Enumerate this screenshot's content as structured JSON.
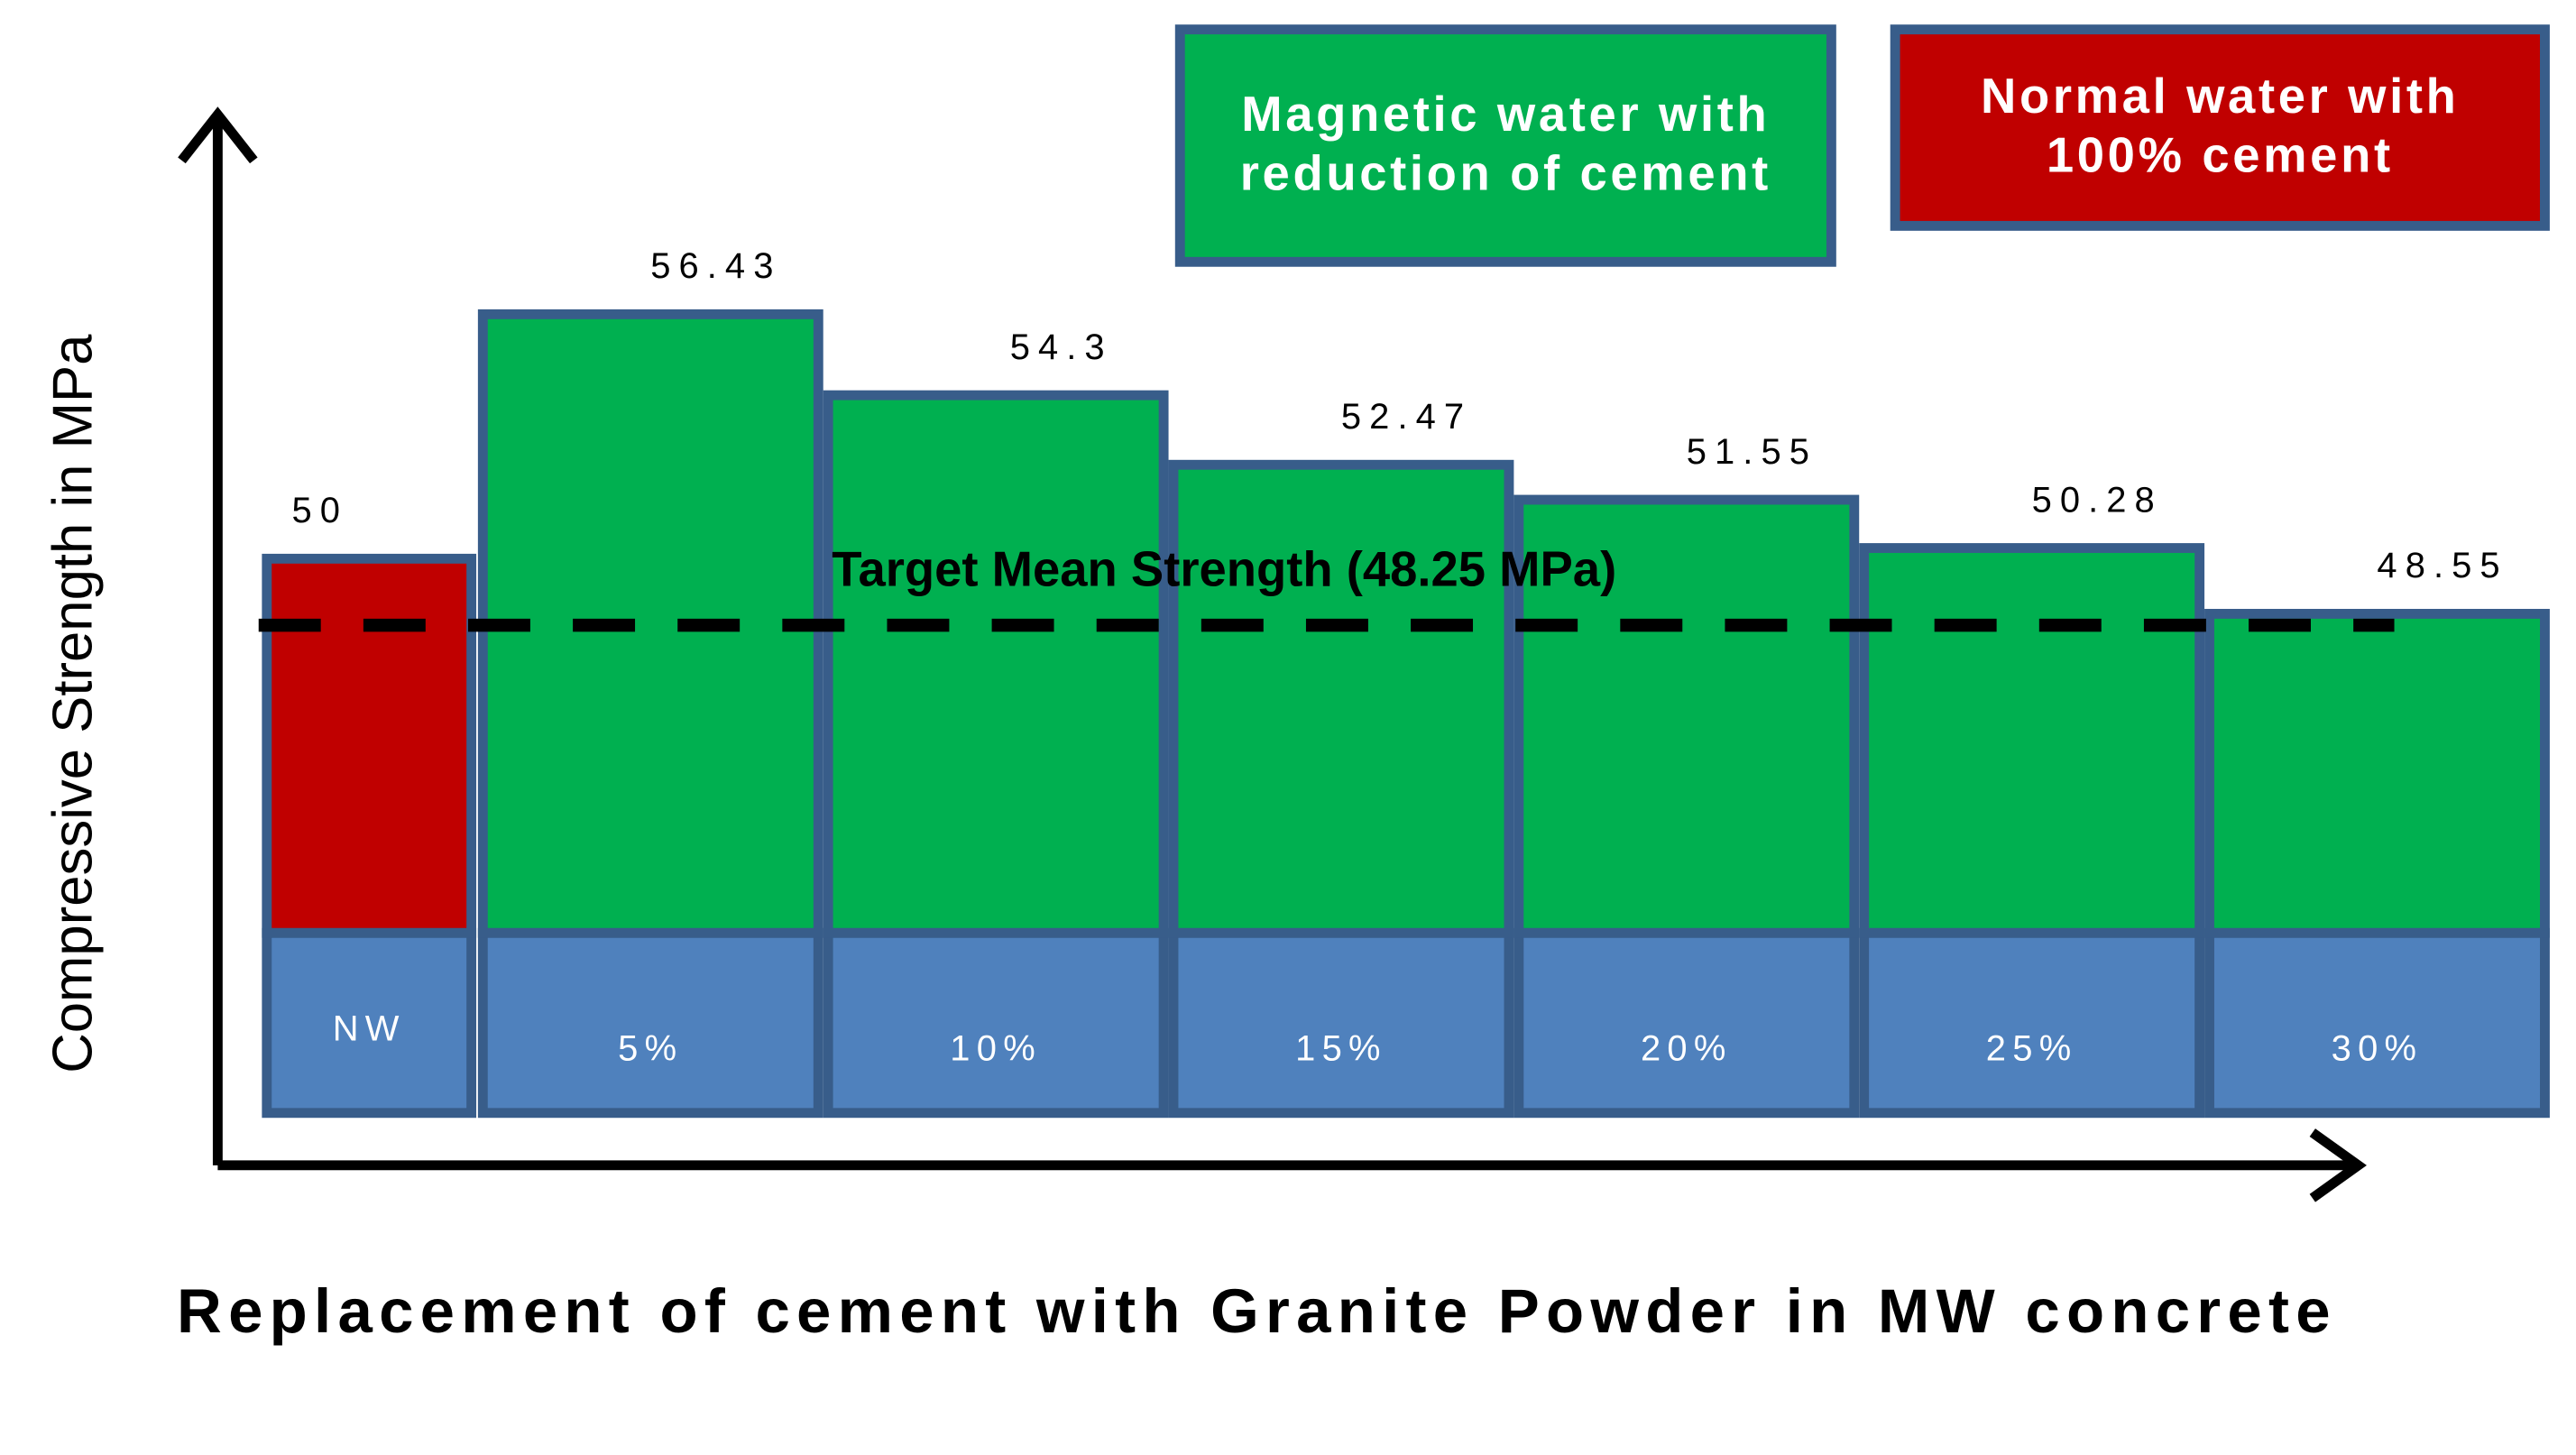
{
  "chart_data": {
    "type": "bar",
    "categories": [
      "NW",
      "5%",
      "10%",
      "15%",
      "20%",
      "25%",
      "30%"
    ],
    "series": [
      {
        "name": "Normal water with 100% cement",
        "color": "#c00000",
        "values": [
          50,
          null,
          null,
          null,
          null,
          null,
          null
        ]
      },
      {
        "name": "Magnetic water with reduction of cement",
        "color": "#00b050",
        "values": [
          null,
          56.43,
          54.3,
          52.47,
          51.55,
          50.28,
          48.55
        ]
      }
    ],
    "reference_line": {
      "value": 48.25,
      "label": "Target Mean Strength (48.25 MPa)"
    },
    "y_label": "Compressive Strength in MPa",
    "x_label": "Replacement of cement with Granite Powder in MW concrete"
  }
}
